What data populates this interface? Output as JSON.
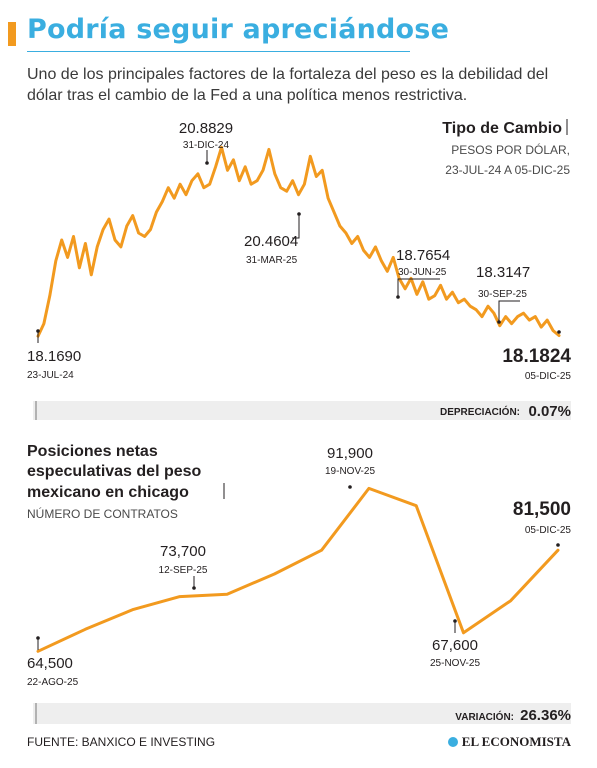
{
  "header": {
    "title": "Podría seguir apreciándose",
    "subtitle": "Uno de los principales factores de la fortaleza del peso es la debilidad del dólar tras el cambio de la Fed a una política menos restrictiva."
  },
  "colors": {
    "accent": "#f29a1f",
    "title": "#3aaee0"
  },
  "footer": {
    "source": "FUENTE: BANXICO E INVESTING",
    "logo": "EL ECONOMISTA"
  },
  "chart_data": [
    {
      "type": "line",
      "title": "Tipo de Cambio",
      "subtitle_line1": "PESOS POR DÓLAR,",
      "subtitle_line2": "23-JUL-24 A 05-DIC-25",
      "ylim": [
        18.0,
        21.3
      ],
      "values": [
        18.169,
        18.35,
        18.75,
        19.25,
        19.55,
        19.3,
        19.6,
        19.15,
        19.5,
        19.05,
        19.45,
        19.7,
        19.85,
        19.55,
        19.45,
        19.75,
        19.9,
        19.65,
        19.6,
        19.7,
        19.95,
        20.1,
        20.3,
        20.15,
        20.35,
        20.2,
        20.4,
        20.5,
        20.3,
        20.35,
        20.6,
        20.88,
        20.55,
        20.7,
        20.4,
        20.6,
        20.35,
        20.4,
        20.55,
        20.85,
        20.5,
        20.3,
        20.25,
        20.4,
        20.2,
        20.35,
        20.75,
        20.46,
        20.55,
        20.15,
        19.95,
        19.75,
        19.65,
        19.5,
        19.6,
        19.4,
        19.3,
        19.45,
        19.25,
        19.1,
        19.3,
        19.0,
        18.85,
        19.0,
        18.77,
        18.95,
        18.7,
        18.75,
        18.9,
        18.7,
        18.8,
        18.65,
        18.7,
        18.6,
        18.55,
        18.45,
        18.6,
        18.5,
        18.32,
        18.45,
        18.35,
        18.45,
        18.5,
        18.4,
        18.45,
        18.3,
        18.4,
        18.25,
        18.18
      ],
      "annotations": [
        {
          "value": "18.1690",
          "date": "23-JUL-24"
        },
        {
          "value": "20.8829",
          "date": "31-DIC-24"
        },
        {
          "value": "20.4604",
          "date": "31-MAR-25"
        },
        {
          "value": "18.7654",
          "date": "30-JUN-25"
        },
        {
          "value": "18.3147",
          "date": "30-SEP-25"
        },
        {
          "value": "18.1824",
          "date": "05-DIC-25"
        }
      ],
      "change_label": "DEPRECIACIÓN:",
      "change_value": "0.07%"
    },
    {
      "type": "line",
      "title_line1": "Posiciones netas",
      "title_line2": "especulativas del peso",
      "title_line3": "mexicano en chicago",
      "subtitle": "NÚMERO DE CONTRATOS",
      "ylim": [
        60000,
        95000
      ],
      "values": [
        64500,
        68200,
        71500,
        73700,
        74100,
        77500,
        81500,
        91900,
        89000,
        67600,
        73000,
        81500
      ],
      "annotations": [
        {
          "value": "64,500",
          "date": "22-AGO-25"
        },
        {
          "value": "73,700",
          "date": "12-SEP-25"
        },
        {
          "value": "91,900",
          "date": "19-NOV-25"
        },
        {
          "value": "67,600",
          "date": "25-NOV-25"
        },
        {
          "value": "81,500",
          "date": "05-DIC-25"
        }
      ],
      "change_label": "VARIACIÓN:",
      "change_value": "26.36%"
    }
  ]
}
